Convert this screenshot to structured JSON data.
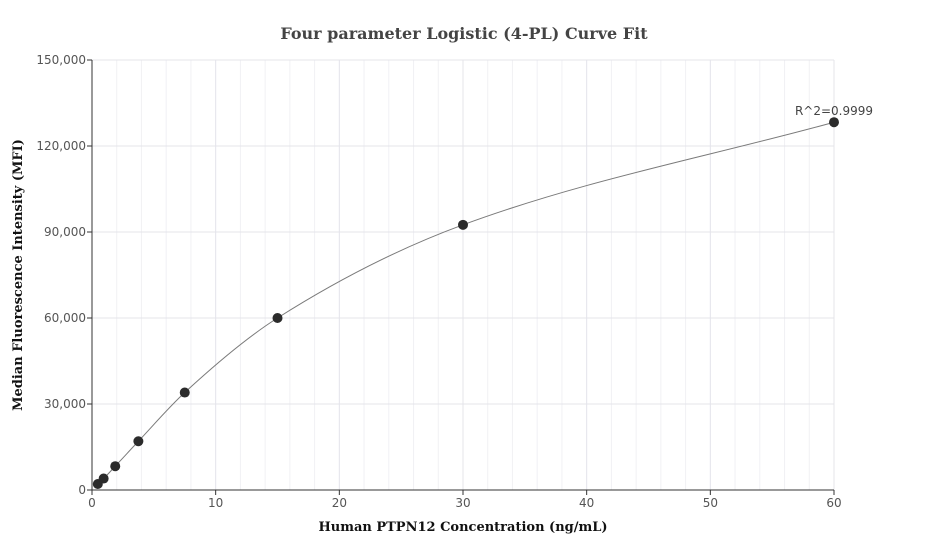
{
  "chart_data": {
    "type": "scatter",
    "title": "Four parameter Logistic (4-PL) Curve Fit",
    "xlabel": "Human PTPN12 Concentration (ng/mL)",
    "ylabel": "Median Fluorescence Intensity (MFI)",
    "xlim": [
      0,
      60
    ],
    "ylim": [
      0,
      150000
    ],
    "x_ticks": [
      "0",
      "10",
      "20",
      "30",
      "40",
      "50",
      "60"
    ],
    "y_ticks": [
      "0",
      "30,000",
      "60,000",
      "90,000",
      "120,000",
      "150,000"
    ],
    "grid": true,
    "series": [
      {
        "points": [
          {
            "x": 0.47,
            "y": 2100
          },
          {
            "x": 0.94,
            "y": 4000
          },
          {
            "x": 1.88,
            "y": 8300
          },
          {
            "x": 3.75,
            "y": 17000
          },
          {
            "x": 7.5,
            "y": 34000
          },
          {
            "x": 15,
            "y": 60000
          },
          {
            "x": 30,
            "y": 92500
          },
          {
            "x": 60,
            "y": 128300
          }
        ],
        "color": "#2b2b2b"
      }
    ],
    "fit_curve": {
      "type": "4-PL",
      "color": "#7a7a7a"
    },
    "annotation": "R^2=0.9999"
  }
}
